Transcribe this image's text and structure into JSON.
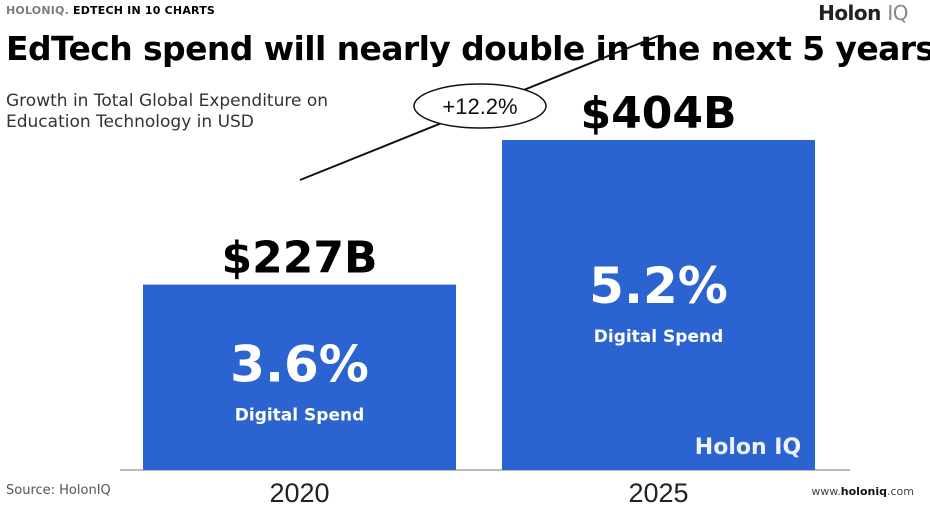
{
  "header": {
    "brand": "HOLONIQ.",
    "section": "EDTECH IN 10 CHARTS",
    "logo": "Holon",
    "logo_suffix": "IQ"
  },
  "title": "EdTech spend will nearly double in the next 5 years",
  "subtitle": "Growth in Total Global Expenditure on Education Technology in USD",
  "chart_data": {
    "type": "bar",
    "categories": [
      "2020",
      "2025"
    ],
    "values": [
      227,
      404
    ],
    "unit": "USD billions",
    "value_labels": [
      "$227B",
      "$404B"
    ],
    "inner_labels": [
      {
        "percent": "3.6%",
        "caption": "Digital Spend"
      },
      {
        "percent": "5.2%",
        "caption": "Digital Spend"
      }
    ],
    "growth_annotation": "+12.2%",
    "bar_color": "#2b63d0",
    "watermark": "Holon IQ"
  },
  "footer": {
    "source": "Source: HolonIQ",
    "url_prefix": "www.",
    "url_brand": "holoniq",
    "url_suffix": ".com"
  }
}
